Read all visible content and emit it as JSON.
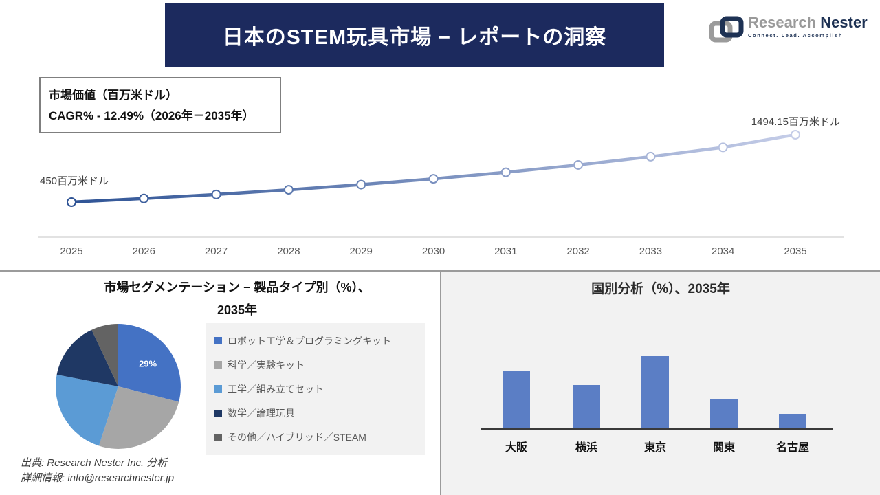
{
  "header": {
    "title": "日本のSTEM玩具市場 − レポートの洞察"
  },
  "logo": {
    "name_part1": "Research",
    "name_part2": "Nester",
    "tagline": "Connect. Lead. Accomplish"
  },
  "market_value_box": {
    "line1": "市場価値（百万米ドル）",
    "line2": "CAGR% - 12.49%（2026年－2035年）"
  },
  "sections": {
    "segmentation": {
      "title_line1": "市場セグメンテーション − 製品タイプ別（%）、",
      "title_line2": "2035年"
    },
    "country": {
      "title": "国別分析（%）、2035年"
    }
  },
  "footer": {
    "source": "出典: Research Nester Inc. 分析",
    "contact": "詳細情報: info@researchnester.jp"
  },
  "colors": {
    "banner_navy": "#1c2a5e",
    "line_gradient_start": "#2E5395",
    "line_gradient_end": "#C5CDE8",
    "axis_light": "#d9d9d9",
    "tick_text": "#595959",
    "bar_blue": "#5B7EC5",
    "panel_gray": "#f2f2f2"
  },
  "chart_data": [
    {
      "type": "line",
      "title": "市場価値（百万米ドル）",
      "x": [
        2025,
        2026,
        2027,
        2028,
        2029,
        2030,
        2031,
        2032,
        2033,
        2034,
        2035
      ],
      "values": [
        450,
        506,
        569,
        641,
        721,
        811,
        912,
        1026,
        1154,
        1298,
        1494.15
      ],
      "first_point_label": "450百万米ドル",
      "last_point_label": "1494.15百万米ドル",
      "cagr_note": "CAGR% - 12.49%（2026年－2035年）",
      "ylabel": "百万米ドル",
      "grid": false,
      "legend": "none",
      "marker": "open-circle"
    },
    {
      "type": "pie",
      "title": "市場セグメンテーション − 製品タイプ別（%）、2035年",
      "labels": [
        "ロボット工学＆プログラミングキット",
        "科学／実験キット",
        "工学／組み立てセット",
        "数学／論理玩具",
        "その他／ハイブリッド／STEAM"
      ],
      "values": [
        29,
        26,
        23,
        15,
        7
      ],
      "colors": [
        "#4472C4",
        "#A6A6A6",
        "#5B9BD5",
        "#1F3864",
        "#636363"
      ],
      "data_labels": [
        "29%",
        "",
        "",
        "",
        ""
      ],
      "legend_position": "right"
    },
    {
      "type": "bar",
      "title": "国別分析（%）、2035年",
      "categories": [
        "大阪",
        "横浜",
        "東京",
        "関東",
        "名古屋"
      ],
      "values": [
        28,
        21,
        35,
        14,
        7
      ],
      "bar_color": "#5B7EC5",
      "ylim": [
        0,
        40
      ],
      "grid": false,
      "value_labels_shown": false
    }
  ]
}
